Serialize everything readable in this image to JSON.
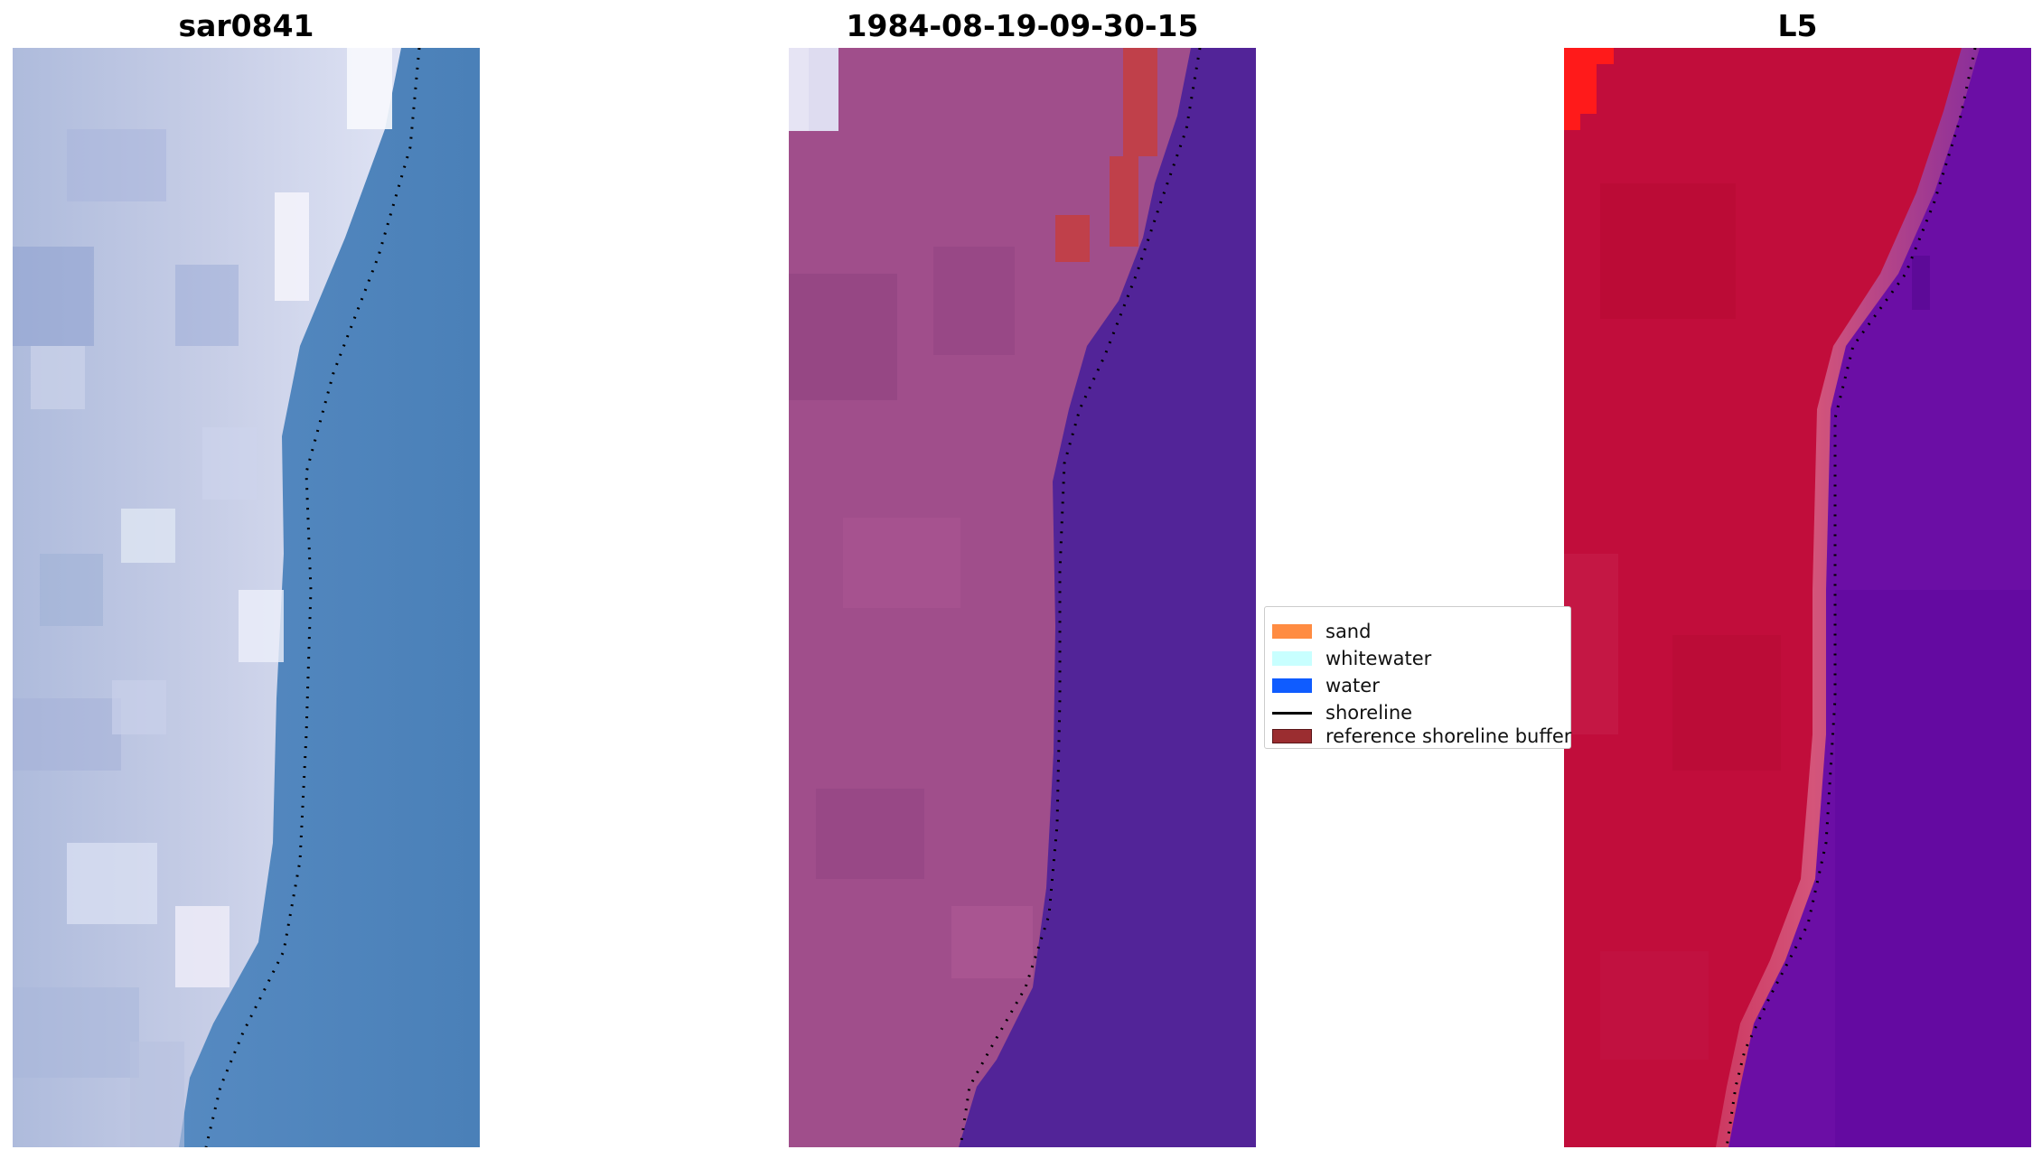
{
  "panels": [
    {
      "title": "sar0841"
    },
    {
      "title": "1984-08-19-09-30-15"
    },
    {
      "title": "L5"
    }
  ],
  "legend": {
    "items": [
      {
        "label": "sand",
        "color": "#ff8c42"
      },
      {
        "label": "whitewater",
        "color": "#c8ffff"
      },
      {
        "label": "water",
        "color": "#0f5cff"
      },
      {
        "label": "shoreline",
        "color": "#000000"
      },
      {
        "label": "reference shoreline buffer",
        "color": "#9b2d30"
      }
    ]
  },
  "colors": {
    "panel1_land": "#c4cbe4",
    "panel1_water": "#5287bd",
    "panel2_land": "#a04e8b",
    "panel2_water": "#522498",
    "panel2_buffer": "#c0404a",
    "panel3_land": "#c10d3b",
    "panel3_water": "#6b0ea5",
    "panel3_corner": "#ff1a1a"
  }
}
